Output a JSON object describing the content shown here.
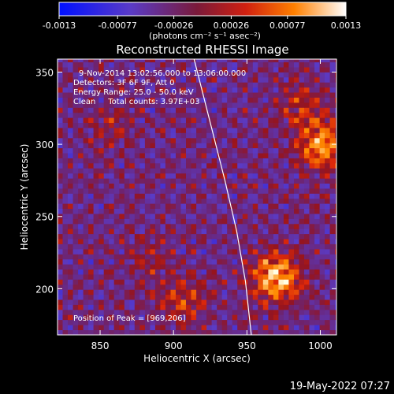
{
  "chart_data": {
    "type": "heatmap",
    "title": "Reconstructed RHESSI Image",
    "xlabel": "Heliocentric X (arcsec)",
    "ylabel": "Heliocentric Y (arcsec)",
    "xlim": [
      821,
      1011
    ],
    "ylim": [
      168,
      359
    ],
    "x_ticks": [
      850,
      900,
      950,
      1000
    ],
    "y_ticks": [
      200,
      250,
      300,
      350
    ],
    "colorbar": {
      "ticks": [
        -0.0013,
        -0.00077,
        -0.00026,
        0.00026,
        0.00077,
        0.0013
      ],
      "tick_labels": [
        "-0.0013",
        "-0.00077",
        "-0.00026",
        "0.00026",
        "0.00077",
        "0.0013"
      ],
      "unit_label": "(photons cm⁻² s⁻¹ asec⁻²)",
      "colors": [
        "#0010ff",
        "#5a3bc6",
        "#7a1a3a",
        "#d02010",
        "#ff8000",
        "#ffffff"
      ]
    },
    "annotations": {
      "time_range": "9-Nov-2014 13:02:56.000 to 13:06:00.000",
      "detectors": "Detectors: 3F 6F 9F, Att 0",
      "energy_range": "Energy Range: 25.0 - 50.0 keV",
      "clean_counts": "Clean     Total counts: 3.97E+03",
      "peak": "Position of Peak = [969,206]"
    },
    "sources": [
      {
        "x": 969,
        "y": 206,
        "value": 0.0013
      },
      {
        "x": 1000,
        "y": 297,
        "value": 0.0011
      },
      {
        "x": 905,
        "y": 190,
        "value": 0.0006
      },
      {
        "x": 985,
        "y": 325,
        "value": 0.0005
      },
      {
        "x": 855,
        "y": 310,
        "value": 0.00035
      },
      {
        "x": 880,
        "y": 220,
        "value": 0.0003
      }
    ],
    "limb": [
      [
        914,
        359
      ],
      [
        925,
        315
      ],
      [
        935,
        275
      ],
      [
        943,
        240
      ],
      [
        949,
        205
      ],
      [
        953,
        168
      ]
    ],
    "background_level": -0.0002
  },
  "footer": {
    "date": "19-May-2022 07:27"
  }
}
